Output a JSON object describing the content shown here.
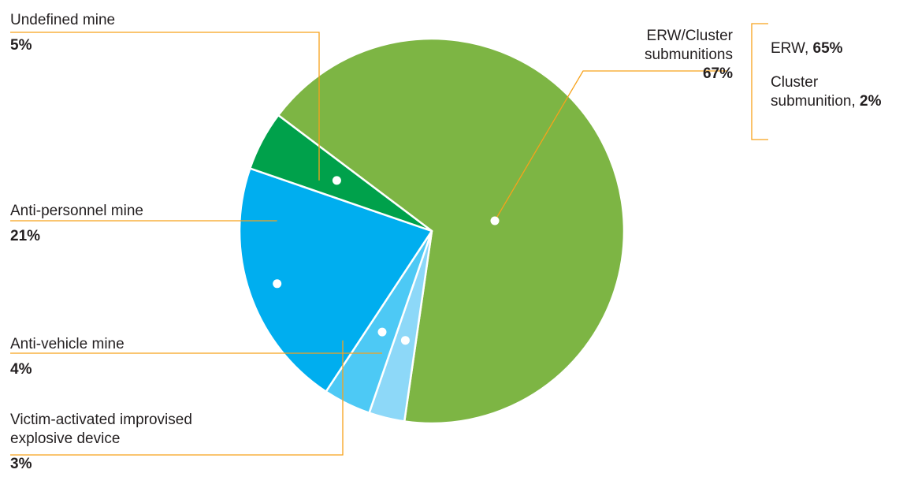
{
  "chart_data": {
    "type": "pie",
    "slices": [
      {
        "label": "ERW/Cluster submunitions",
        "value": 67,
        "value_label": "67%",
        "color": "#7db544"
      },
      {
        "label": "Victim-activated improvised explosive device",
        "value": 3,
        "value_label": "3%",
        "color": "#8dd8f8"
      },
      {
        "label": "Anti-vehicle mine",
        "value": 4,
        "value_label": "4%",
        "color": "#4dc9f5"
      },
      {
        "label": "Anti-personnel mine",
        "value": 21,
        "value_label": "21%",
        "color": "#00aeef"
      },
      {
        "label": "Undefined mine",
        "value": 5,
        "value_label": "5%",
        "color": "#00a14b"
      }
    ],
    "breakdown": {
      "of": "ERW/Cluster submunitions",
      "items": [
        {
          "label": "ERW",
          "value": 65,
          "value_label": "65%"
        },
        {
          "label": "Cluster submunition",
          "value": 2,
          "value_label": "2%"
        }
      ]
    },
    "leader_color": "#f7a21b"
  },
  "labels": {
    "erw_cluster_line1": "ERW/Cluster",
    "erw_cluster_line2": "submunitions",
    "victim_line1": "Victim-activated improvised",
    "victim_line2": "explosive device",
    "erw": "ERW",
    "cluster_line1": "Cluster",
    "cluster_line2": "submunition"
  }
}
